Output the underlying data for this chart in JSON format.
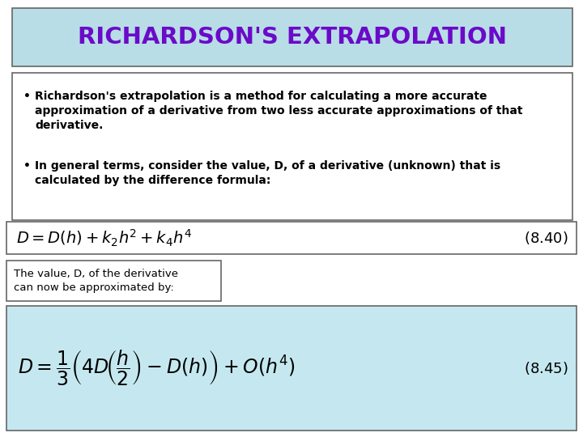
{
  "title": "RICHARDSON'S EXTRAPOLATION",
  "title_color": "#6B0AC9",
  "title_bg_color": "#b8dde6",
  "title_border_color": "#666666",
  "bullet1_line1": "Richardson's extrapolation is a method for calculating a more accurate",
  "bullet1_line2": "approximation of a derivative from two less accurate approximations of that",
  "bullet1_line3": "derivative.",
  "bullet2_line1": "In general terms, consider the value, D, of a derivative (unknown) that is",
  "bullet2_line2": "calculated by the difference formula:",
  "formula1_latex": "$D = D(h)+k_2h^2+k_4h^4$",
  "formula1_label": "$(8.40)$",
  "formula2_latex": "$D = \\dfrac{1}{3}\\left(4D\\!\\left(\\dfrac{h}{2}\\right)-D(h)\\right)+O(h^4)$",
  "formula2_label": "$(8.45)$",
  "small_box_line1": "The value, D, of the derivative",
  "small_box_line2": "can now be approximated by:",
  "formula1_bg": "#ffffff",
  "formula2_bg": "#c5e8f0",
  "bg_color": "#ffffff",
  "border_color": "#666666"
}
